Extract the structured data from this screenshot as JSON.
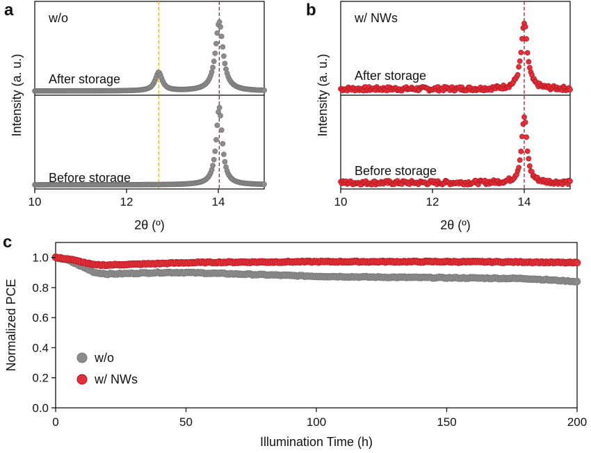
{
  "chart_data": [
    {
      "panel": "a",
      "type": "scatter",
      "inset_label": "w/o",
      "xlabel": "2θ (º)",
      "ylabel": "Intensity (a. u.)",
      "xlim": [
        10,
        15
      ],
      "xticks": [
        "10",
        "12",
        "14"
      ],
      "xtick_values": [
        10,
        12,
        14
      ],
      "reference_lines": [
        12.7,
        14.02
      ],
      "reference_colors": [
        "#e8b400",
        "#8b1a1a"
      ],
      "marker_color": "#8c8c8c",
      "traces": [
        {
          "label": "After storage",
          "peaks": [
            {
              "center": 12.7,
              "height": 0.22,
              "width": 0.09
            },
            {
              "center": 14.02,
              "height": 0.82,
              "width": 0.1
            }
          ]
        },
        {
          "label": "Before storage",
          "peaks": [
            {
              "center": 14.02,
              "height": 0.92,
              "width": 0.08
            }
          ]
        }
      ]
    },
    {
      "panel": "b",
      "type": "scatter",
      "inset_label": "w/ NWs",
      "xlabel": "2θ (º)",
      "ylabel": "Intensity (a. u.)",
      "xlim": [
        10,
        15
      ],
      "xticks": [
        "10",
        "12",
        "14"
      ],
      "xtick_values": [
        10,
        12,
        14
      ],
      "reference_lines": [
        14.0
      ],
      "reference_colors": [
        "#8b1a1a"
      ],
      "marker_color": "#e0303a",
      "traces": [
        {
          "label": "After storage",
          "peaks": [
            {
              "center": 14.0,
              "height": 0.78,
              "width": 0.08
            }
          ]
        },
        {
          "label": "Before storage",
          "peaks": [
            {
              "center": 14.0,
              "height": 0.78,
              "width": 0.07
            }
          ]
        }
      ]
    },
    {
      "panel": "c",
      "type": "scatter",
      "xlabel": "Illumination Time (h)",
      "ylabel": "Normalized PCE",
      "xlim": [
        0,
        200
      ],
      "ylim": [
        0,
        1.1
      ],
      "xticks": [
        "0",
        "50",
        "100",
        "150",
        "200"
      ],
      "xtick_values": [
        0,
        50,
        100,
        150,
        200
      ],
      "yticks": [
        "0.0",
        "0.2",
        "0.4",
        "0.6",
        "0.8",
        "1.0"
      ],
      "ytick_values": [
        0,
        0.2,
        0.4,
        0.6,
        0.8,
        1.0
      ],
      "legend_position": "lower-left",
      "series": [
        {
          "name": "w/o",
          "color": "#8c8c8c",
          "x": [
            0,
            5,
            10,
            15,
            20,
            30,
            40,
            50,
            60,
            80,
            100,
            120,
            150,
            180,
            200
          ],
          "y": [
            1.0,
            0.98,
            0.94,
            0.9,
            0.89,
            0.895,
            0.9,
            0.9,
            0.895,
            0.885,
            0.875,
            0.87,
            0.865,
            0.86,
            0.84
          ]
        },
        {
          "name": "w/ NWs",
          "color": "#e0303a",
          "x": [
            0,
            5,
            10,
            15,
            20,
            30,
            40,
            50,
            60,
            80,
            100,
            120,
            150,
            180,
            200
          ],
          "y": [
            1.0,
            0.99,
            0.97,
            0.95,
            0.95,
            0.955,
            0.96,
            0.965,
            0.968,
            0.97,
            0.972,
            0.972,
            0.972,
            0.97,
            0.965
          ]
        }
      ]
    }
  ]
}
